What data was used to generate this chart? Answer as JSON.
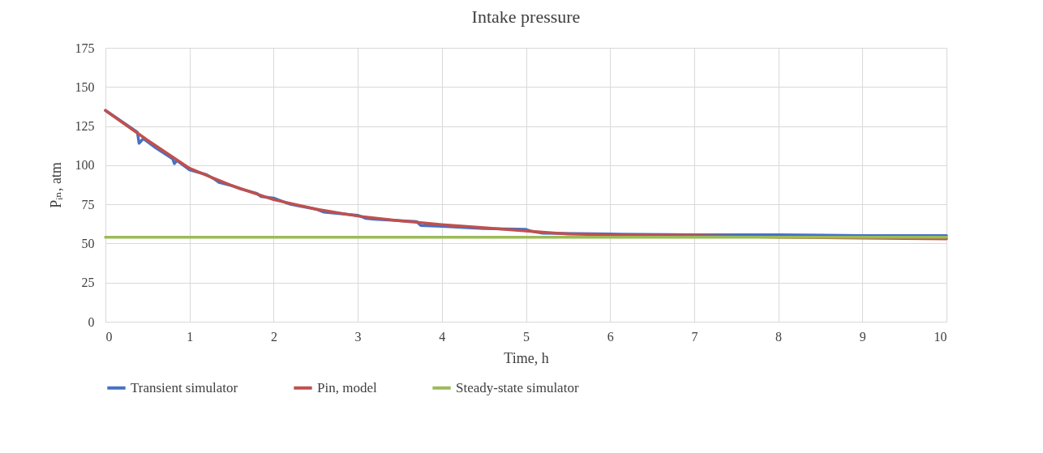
{
  "chart_data": {
    "type": "line",
    "title": "Intake pressure",
    "xlabel": "Time, h",
    "ylabel": "Pᵢₙ, atm",
    "xlim": [
      0,
      10
    ],
    "xticks": [
      0,
      1,
      2,
      3,
      4,
      5,
      6,
      7,
      8,
      9,
      10
    ],
    "ylim": [
      0,
      175
    ],
    "yticks": [
      0,
      25,
      50,
      75,
      100,
      125,
      150,
      175
    ],
    "grid": true,
    "legend": "bottom",
    "line_style": "solid",
    "series": [
      {
        "name": "Transient simulator",
        "color": "#4472c4",
        "x": [
          0,
          0.3,
          0.38,
          0.4,
          0.45,
          0.6,
          0.8,
          0.82,
          0.85,
          1,
          1.2,
          1.3,
          1.35,
          1.5,
          1.6,
          1.8,
          1.85,
          2,
          2.1,
          2.2,
          2.5,
          2.55,
          2.6,
          3,
          3.1,
          3.2,
          3.7,
          3.75,
          4,
          4.5,
          5,
          5.05,
          5.2,
          6,
          7,
          8,
          9,
          10
        ],
        "values": [
          135,
          124,
          121,
          114,
          117,
          111,
          104,
          101,
          103,
          97,
          94,
          91,
          89,
          87,
          85,
          82,
          80,
          79,
          77,
          75,
          72,
          71,
          70,
          68,
          66,
          65.5,
          64,
          61.5,
          61,
          59.5,
          59,
          58,
          56.5,
          56,
          55.5,
          55.5,
          55,
          55
        ]
      },
      {
        "name": "Pin, model",
        "color": "#c0504d",
        "x": [
          0,
          0.5,
          1,
          1.5,
          2,
          2.5,
          3,
          3.5,
          4,
          4.5,
          5,
          5.5,
          6,
          7,
          8,
          9,
          10
        ],
        "values": [
          135,
          116,
          98,
          87,
          78,
          72,
          67.5,
          64.5,
          62,
          60,
          58,
          56,
          55.5,
          55,
          54,
          53.5,
          53
        ]
      },
      {
        "name": "Steady-state simulator",
        "color": "#9bbb59",
        "x": [
          0,
          10
        ],
        "values": [
          54,
          54
        ]
      }
    ]
  }
}
